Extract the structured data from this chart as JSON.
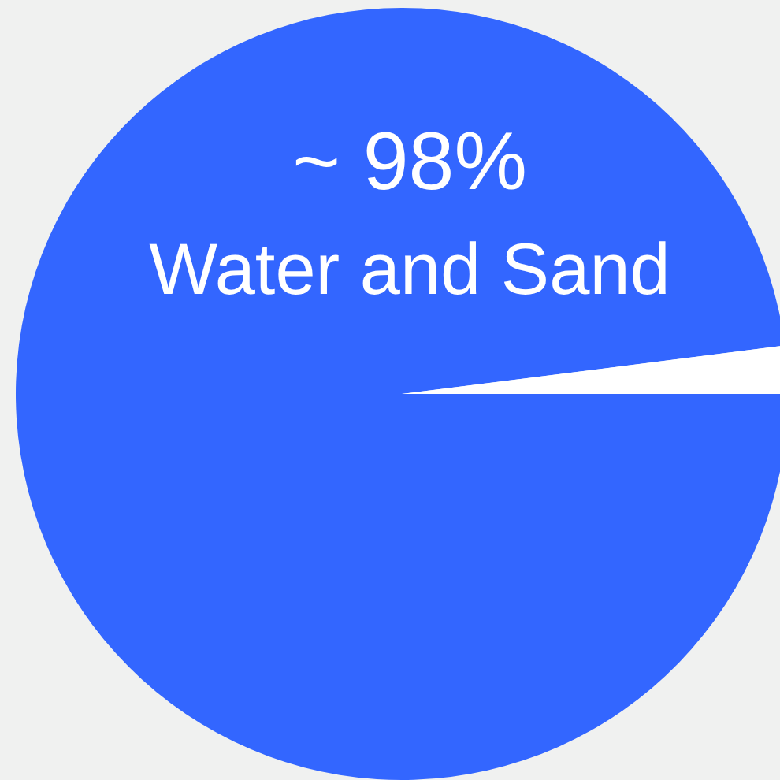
{
  "chart_data": {
    "type": "pie",
    "categories": [
      "Water and Sand",
      null
    ],
    "values": [
      98,
      2
    ],
    "colors": [
      "#3366ff",
      "#ffffff"
    ],
    "value_labels": [
      "~ 98%",
      null
    ]
  }
}
